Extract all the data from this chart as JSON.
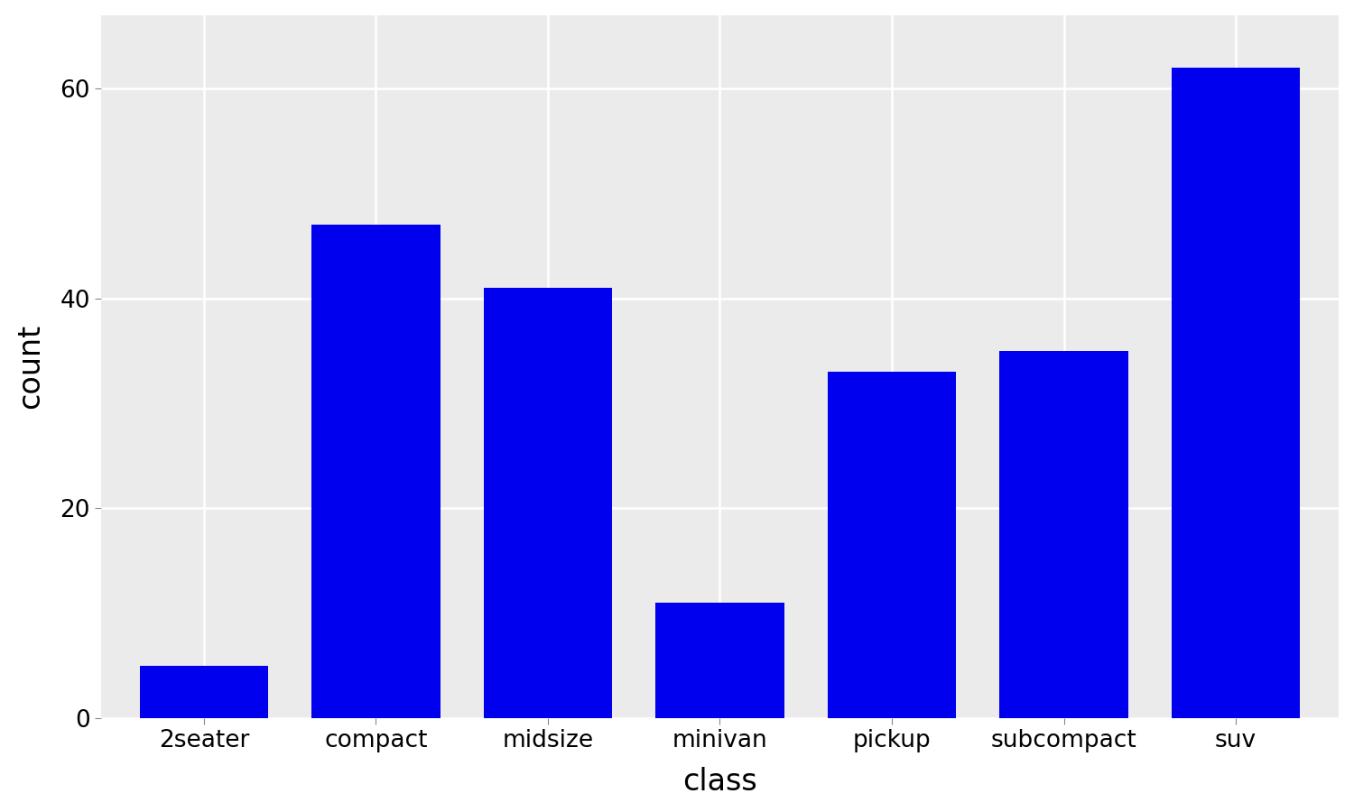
{
  "categories": [
    "2seater",
    "compact",
    "midsize",
    "minivan",
    "pickup",
    "subcompact",
    "suv"
  ],
  "values": [
    5,
    47,
    41,
    11,
    33,
    35,
    62
  ],
  "bar_color": "#0000EE",
  "panel_background": "#EBEBEB",
  "figure_background": "#FFFFFF",
  "grid_color": "#FFFFFF",
  "xlabel": "class",
  "ylabel": "count",
  "xlabel_fontsize": 24,
  "ylabel_fontsize": 24,
  "tick_fontsize": 19,
  "ylim": [
    0,
    67
  ],
  "yticks": [
    0,
    20,
    40,
    60
  ],
  "bar_width": 0.75,
  "figsize": [
    15.0,
    9.0
  ],
  "dpi": 100,
  "grid_linewidth": 1.8
}
